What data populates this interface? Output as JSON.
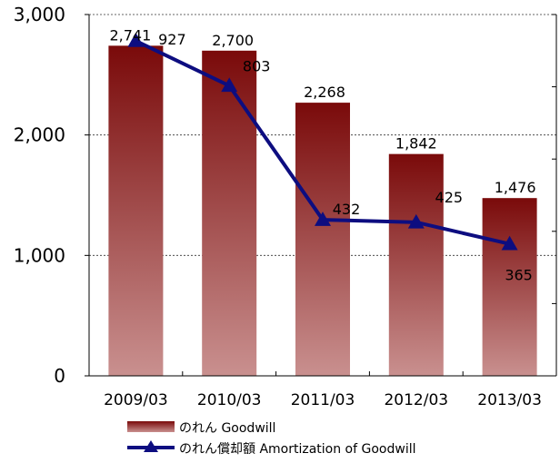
{
  "chart_data": {
    "type": "bar",
    "categories": [
      "2009/03",
      "2010/03",
      "2011/03",
      "2012/03",
      "2013/03"
    ],
    "series": [
      {
        "name": "のれん Goodwill",
        "kind": "bar",
        "axis": "left",
        "values": [
          2741,
          2700,
          2268,
          1842,
          1476
        ],
        "labels": [
          "2,741",
          "2,700",
          "2,268",
          "1,842",
          "1,476"
        ],
        "color_top": "#7a0a0a",
        "color_bottom": "#c9908f"
      },
      {
        "name": "のれん償却額 Amortization of Goodwill",
        "kind": "line",
        "axis": "right",
        "values": [
          927,
          803,
          432,
          425,
          365
        ],
        "labels": [
          "927",
          "803",
          "432",
          "425",
          "365"
        ],
        "color": "#0d0d80",
        "marker": "triangle"
      }
    ],
    "y_left": {
      "ylim": [
        0,
        3000
      ],
      "ticks": [
        0,
        1000,
        2000,
        3000
      ],
      "tick_labels": [
        "0",
        "1,000",
        "2,000",
        "3,000"
      ]
    },
    "y_right": {
      "ylim": [
        0,
        1000
      ],
      "ticks": [
        0,
        200,
        400,
        600,
        800,
        1000
      ],
      "tick_labels": []
    },
    "title": "",
    "xlabel": "",
    "ylabel": "",
    "grid": "horizontal dashed at left-axis ticks",
    "legend_position": "bottom"
  }
}
